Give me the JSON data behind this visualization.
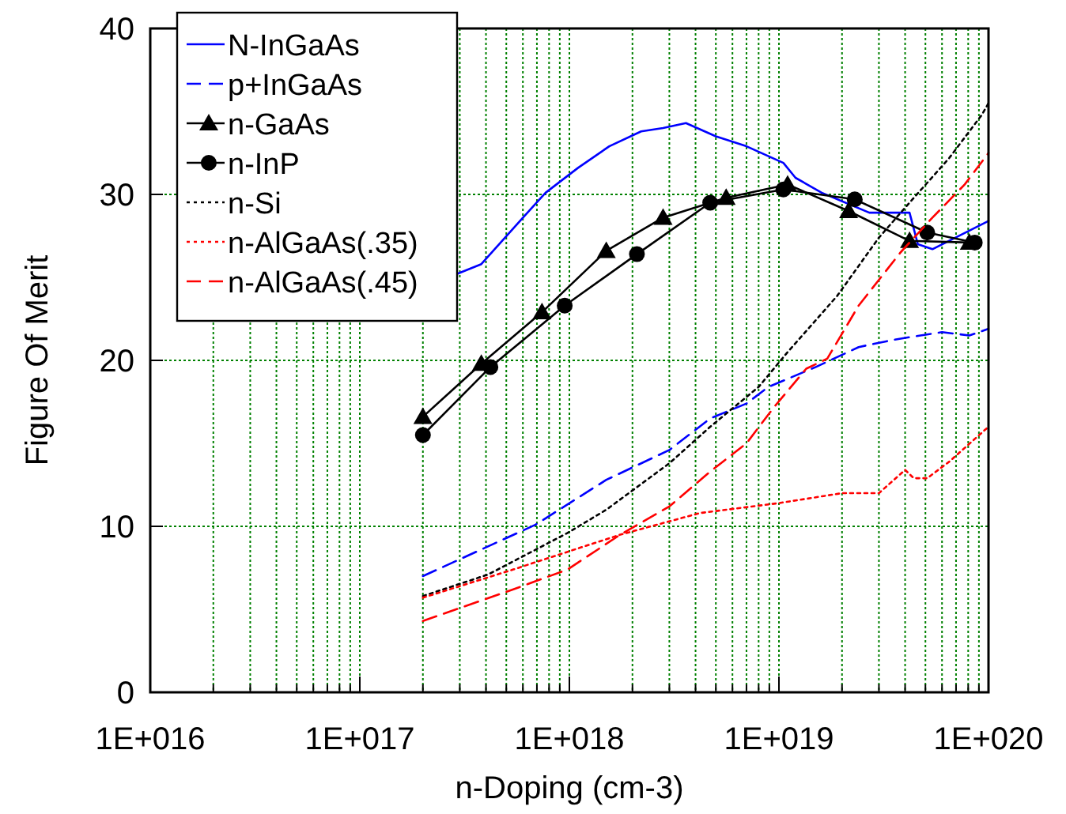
{
  "chart_data": {
    "type": "line",
    "xlabel": "n-Doping (cm-3)",
    "ylabel": "Figure Of Merit",
    "log": "x",
    "grid": true,
    "legend": "top left",
    "xlim": [
      1e+16,
      1e+20
    ],
    "ylim": [
      0,
      40
    ],
    "xticks": [
      {
        "value": 1e+16,
        "label": "1E+016"
      },
      {
        "value": 2e+16,
        "label": null
      },
      {
        "value": 3e+16,
        "label": null
      },
      {
        "value": 4e+16,
        "label": null
      },
      {
        "value": 5e+16,
        "label": null
      },
      {
        "value": 6e+16,
        "label": null
      },
      {
        "value": 7e+16,
        "label": null
      },
      {
        "value": 8e+16,
        "label": null
      },
      {
        "value": 9e+16,
        "label": null
      },
      {
        "value": 1e+17,
        "label": "1E+017"
      },
      {
        "value": 2e+17,
        "label": null
      },
      {
        "value": 3e+17,
        "label": null
      },
      {
        "value": 4e+17,
        "label": null
      },
      {
        "value": 5e+17,
        "label": null
      },
      {
        "value": 6e+17,
        "label": null
      },
      {
        "value": 7e+17,
        "label": null
      },
      {
        "value": 8e+17,
        "label": null
      },
      {
        "value": 9e+17,
        "label": null
      },
      {
        "value": 1e+18,
        "label": "1E+018"
      },
      {
        "value": 2e+18,
        "label": null
      },
      {
        "value": 3e+18,
        "label": null
      },
      {
        "value": 4e+18,
        "label": null
      },
      {
        "value": 5e+18,
        "label": null
      },
      {
        "value": 6e+18,
        "label": null
      },
      {
        "value": 7e+18,
        "label": null
      },
      {
        "value": 8e+18,
        "label": null
      },
      {
        "value": 9e+18,
        "label": null
      },
      {
        "value": 1e+19,
        "label": "1E+019"
      },
      {
        "value": 2e+19,
        "label": null
      },
      {
        "value": 3e+19,
        "label": null
      },
      {
        "value": 4e+19,
        "label": null
      },
      {
        "value": 5e+19,
        "label": null
      },
      {
        "value": 6e+19,
        "label": null
      },
      {
        "value": 7e+19,
        "label": null
      },
      {
        "value": 8e+19,
        "label": null
      },
      {
        "value": 9e+19,
        "label": null
      },
      {
        "value": 1e+20,
        "label": "1E+020"
      }
    ],
    "yticks": [
      0,
      10,
      20,
      30,
      40
    ],
    "series": [
      {
        "name": "N-InGaAs",
        "color": "#0000ff",
        "line_style": "solid",
        "marker": "none",
        "x": [
          2.9e+17,
          3.8e+17,
          6.1e+17,
          7.7e+17,
          1.1e+18,
          1.55e+18,
          2.2e+18,
          2.8e+18,
          3.6e+18,
          5e+18,
          7e+18,
          1.05e+19,
          1.2e+19,
          1.6e+19,
          2.7e+19,
          4.2e+19,
          4.6e+19,
          5.4e+19,
          1e+20
        ],
        "values": [
          25.2,
          25.8,
          28.7,
          30.1,
          31.6,
          32.9,
          33.8,
          34.0,
          34.3,
          33.5,
          32.9,
          31.9,
          31.0,
          30.1,
          28.9,
          28.9,
          27.0,
          26.7,
          28.4
        ]
      },
      {
        "name": "p+InGaAs",
        "color": "#0000ff",
        "line_style": "dashed",
        "marker": "none",
        "x": [
          2e+17,
          6.9e+17,
          1.5e+18,
          3e+18,
          4.7e+18,
          7e+18,
          8.9e+18,
          1.5e+19,
          2.4e+19,
          3.4e+19,
          4.2e+19,
          6e+19,
          8.1e+19,
          1e+20
        ],
        "values": [
          7.0,
          10.1,
          12.8,
          14.6,
          16.5,
          17.4,
          18.4,
          19.6,
          20.8,
          21.2,
          21.4,
          21.7,
          21.5,
          21.9
        ]
      },
      {
        "name": "n-GaAs",
        "color": "#000000",
        "line_style": "solid",
        "marker": "triangle",
        "x": [
          2e+17,
          3.8e+17,
          7.4e+17,
          1.5e+18,
          2.8e+18,
          5.6e+18,
          1.1e+19,
          2.15e+19,
          4.2e+19,
          8.1e+19
        ],
        "values": [
          16.6,
          19.8,
          22.9,
          26.6,
          28.6,
          29.8,
          30.6,
          29.0,
          27.2,
          27.1
        ]
      },
      {
        "name": "n-InP",
        "color": "#000000",
        "line_style": "solid",
        "marker": "circle",
        "x": [
          2e+17,
          4.2e+17,
          9.5e+17,
          2.1e+18,
          4.7e+18,
          1.05e+19,
          2.3e+19,
          5.1e+19,
          8.6e+19
        ],
        "values": [
          15.5,
          19.6,
          23.3,
          26.4,
          29.5,
          30.3,
          29.7,
          27.7,
          27.1
        ]
      },
      {
        "name": "n-Si",
        "color": "#000000",
        "line_style": "dotted",
        "marker": "none",
        "x": [
          2e+17,
          4.1e+17,
          9.8e+17,
          1.5e+18,
          3e+18,
          4.7e+18,
          8e+18,
          1.1e+19,
          1.9e+19,
          3e+19,
          4.2e+19,
          6.5e+19,
          9.3e+19,
          1e+20
        ],
        "values": [
          5.8,
          7.1,
          9.6,
          11.0,
          13.8,
          16.0,
          18.4,
          20.5,
          23.9,
          27.4,
          29.5,
          32.2,
          34.8,
          35.5
        ]
      },
      {
        "name": "n-AlGaAs(.35)",
        "color": "#ff0000",
        "line_style": "dotted",
        "marker": "none",
        "x": [
          2e+17,
          5.4e+17,
          1.75e+18,
          4.2e+18,
          1e+19,
          2e+19,
          3e+19,
          4e+19,
          4.4e+19,
          5.1e+19,
          6.5e+19,
          1e+20
        ],
        "values": [
          5.7,
          7.4,
          9.5,
          10.8,
          11.4,
          12.0,
          12.0,
          13.4,
          12.9,
          12.9,
          13.9,
          16.0
        ]
      },
      {
        "name": "n-AlGaAs(.45)",
        "color": "#ff0000",
        "line_style": "dashed",
        "marker": "none",
        "x": [
          2e+17,
          5.4e+17,
          9.8e+17,
          1.75e+18,
          3e+18,
          4.7e+18,
          7e+18,
          9.5e+18,
          1.35e+19,
          1.7e+19,
          2.4e+19,
          3.8e+19,
          5.4e+19,
          7.7e+19,
          1e+20
        ],
        "values": [
          4.3,
          6.2,
          7.4,
          9.5,
          11.2,
          13.3,
          15.0,
          17.2,
          19.5,
          20.1,
          23.3,
          26.5,
          28.6,
          30.6,
          32.5
        ]
      }
    ]
  }
}
